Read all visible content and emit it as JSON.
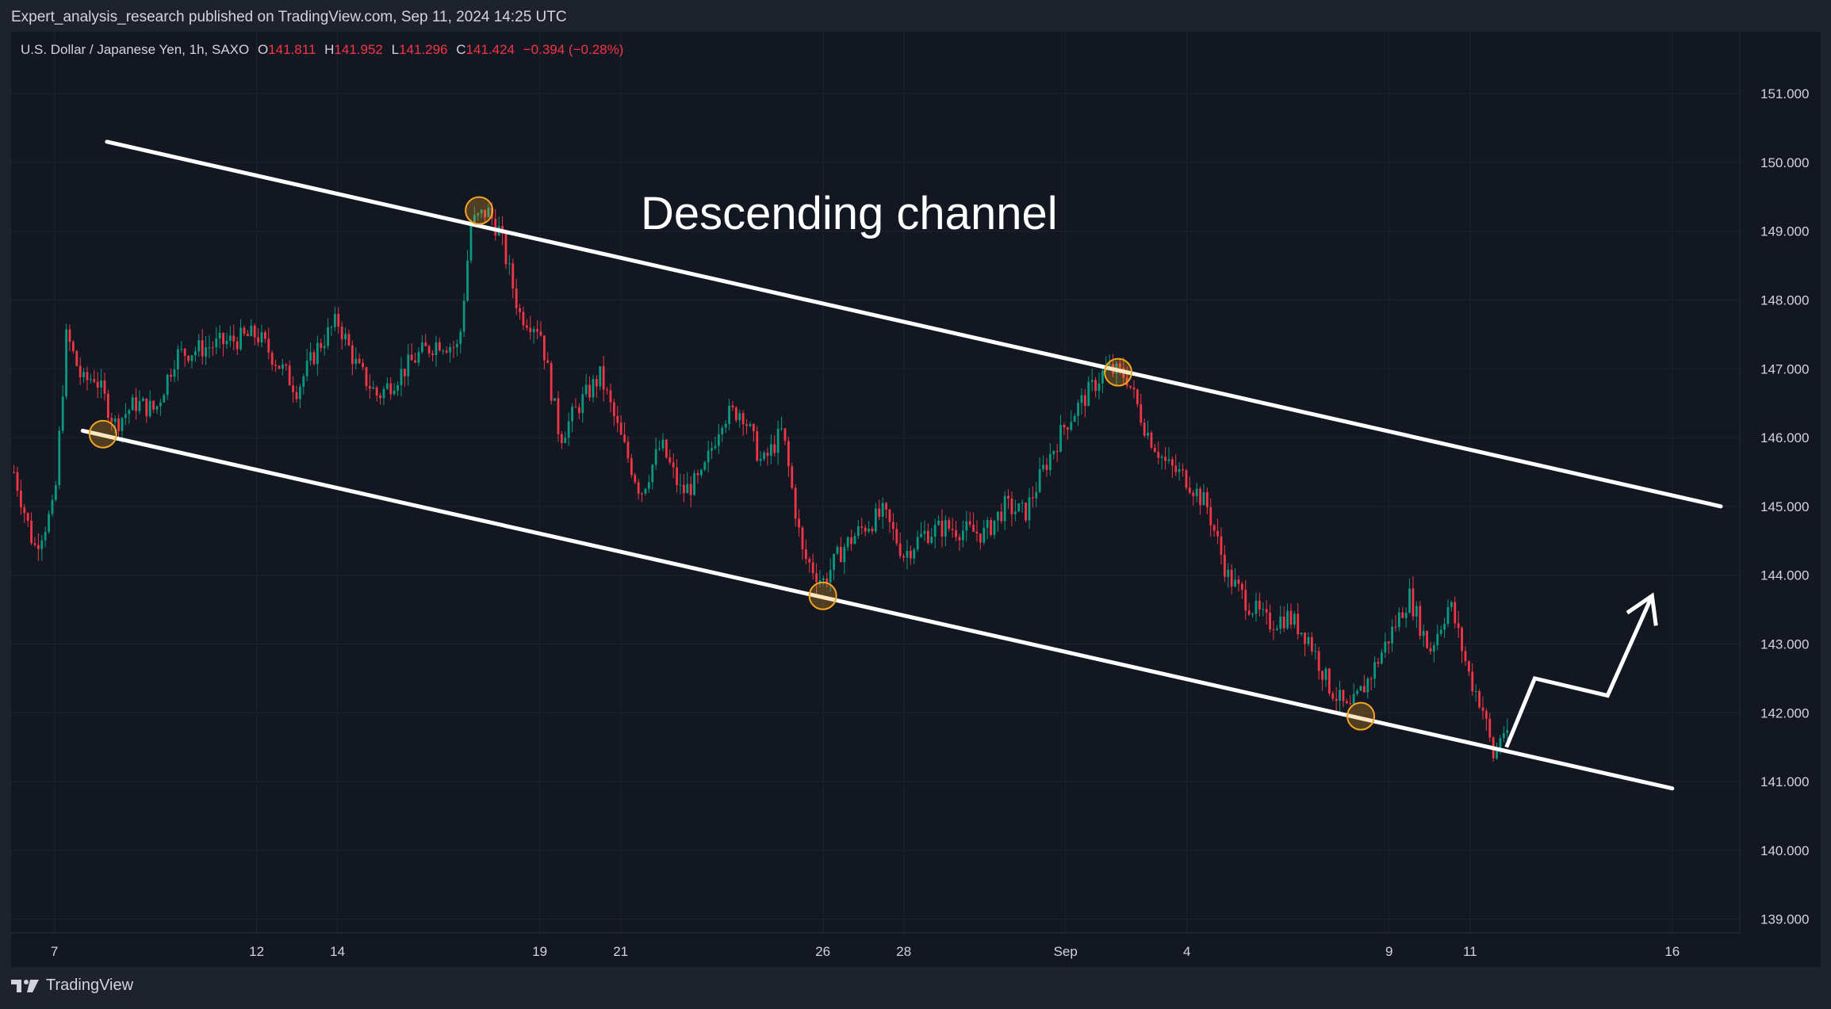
{
  "header": {
    "published_line": "Expert_analysis_research published on TradingView.com, Sep 11, 2024 14:25 UTC"
  },
  "legend": {
    "symbol": "U.S. Dollar / Japanese Yen, 1h, SAXO",
    "open_key": "O",
    "open": "141.811",
    "high_key": "H",
    "high": "141.952",
    "low_key": "L",
    "low": "141.296",
    "close_key": "C",
    "close": "141.424",
    "change": "−0.394 (−0.28%)"
  },
  "annotation": {
    "text": "Descending channel"
  },
  "footer": {
    "brand": "TradingView"
  },
  "colors": {
    "background": "#131722",
    "up_candle": "#089981",
    "down_candle": "#f23645",
    "channel_line": "#ffffff",
    "touch_marker": "#f5a623"
  },
  "chart_data": {
    "type": "candlestick",
    "symbol": "USDJPY",
    "timeframe": "1h",
    "y_axis": {
      "ticks": [
        "151.000",
        "150.000",
        "149.000",
        "148.000",
        "147.000",
        "146.000",
        "145.000",
        "144.000",
        "143.000",
        "142.000",
        "141.000",
        "140.000",
        "139.000"
      ],
      "ylim": [
        138.8,
        151.9
      ]
    },
    "x_axis": {
      "ticks": [
        "7",
        "12",
        "14",
        "19",
        "21",
        "26",
        "28",
        "Sep",
        "4",
        "9",
        "11",
        "16"
      ]
    },
    "price_path": [
      [
        "Aug 6",
        145.5
      ],
      [
        "Aug 6.5",
        144.4
      ],
      [
        "Aug 7",
        145.0
      ],
      [
        "Aug 7.3",
        147.5
      ],
      [
        "Aug 7.7",
        146.8
      ],
      [
        "Aug 8",
        146.9
      ],
      [
        "Aug 8.5",
        146.2
      ],
      [
        "Aug 9",
        146.5
      ],
      [
        "Aug 9.5",
        146.4
      ],
      [
        "Aug 10",
        147.2
      ],
      [
        "Aug 12",
        147.5
      ],
      [
        "Aug 13",
        146.7
      ],
      [
        "Aug 13.5",
        147.3
      ],
      [
        "Aug 14",
        147.7
      ],
      [
        "Aug 14.5",
        147.0
      ],
      [
        "Aug 15",
        146.6
      ],
      [
        "Aug 16",
        147.2
      ],
      [
        "Aug 16.5",
        147.4
      ],
      [
        "Aug 17",
        147.3
      ],
      [
        "Aug 17.3",
        149.1
      ],
      [
        "Aug 17.7",
        149.3
      ],
      [
        "Aug 18",
        149.0
      ],
      [
        "Aug 18.5",
        147.8
      ],
      [
        "Aug 19",
        147.6
      ],
      [
        "Aug 19.5",
        146.0
      ],
      [
        "Aug 20",
        146.5
      ],
      [
        "Aug 20.5",
        146.9
      ],
      [
        "Aug 21",
        146.0
      ],
      [
        "Aug 21.5",
        145.2
      ],
      [
        "Aug 22",
        145.9
      ],
      [
        "Aug 22.5",
        145.2
      ],
      [
        "Aug 23",
        145.4
      ],
      [
        "Aug 23.5",
        146.3
      ],
      [
        "Aug 24",
        146.4
      ],
      [
        "Aug 24.5",
        145.6
      ],
      [
        "Aug 25",
        146.1
      ],
      [
        "Aug 25.5",
        144.3
      ],
      [
        "Aug 26",
        143.9
      ],
      [
        "Aug 26.5",
        144.4
      ],
      [
        "Aug 27",
        144.7
      ],
      [
        "Aug 27.5",
        144.9
      ],
      [
        "Aug 28",
        144.3
      ],
      [
        "Aug 28.5",
        144.6
      ],
      [
        "Aug 29",
        144.7
      ],
      [
        "Aug 30",
        144.6
      ],
      [
        "Aug 30.5",
        145.0
      ],
      [
        "Aug 31",
        144.9
      ],
      [
        "Aug 31.5",
        145.6
      ],
      [
        "Sep 1",
        146.2
      ],
      [
        "Sep 1.5",
        146.6
      ],
      [
        "Sep 2",
        147.0
      ],
      [
        "Sep 2.5",
        146.9
      ],
      [
        "Sep 3",
        146.1
      ],
      [
        "Sep 3.5",
        145.6
      ],
      [
        "Sep 4",
        145.4
      ],
      [
        "Sep 4.5",
        145.0
      ],
      [
        "Sep 5",
        144.0
      ],
      [
        "Sep 5.5",
        143.6
      ],
      [
        "Sep 6",
        143.3
      ],
      [
        "Sep 6.5",
        143.4
      ],
      [
        "Sep 7",
        143.1
      ],
      [
        "Sep 7.5",
        142.4
      ],
      [
        "Sep 8",
        142.0
      ],
      [
        "Sep 8.5",
        142.5
      ],
      [
        "Sep 9",
        143.1
      ],
      [
        "Sep 9.5",
        143.7
      ],
      [
        "Sep 10",
        142.9
      ],
      [
        "Sep 10.5",
        143.6
      ],
      [
        "Sep 11",
        142.5
      ],
      [
        "Sep 11.3",
        142.1
      ],
      [
        "Sep 11.6",
        141.3
      ],
      [
        "Sep 11.8",
        141.8
      ],
      [
        "Sep 12",
        141.45
      ]
    ],
    "channel": {
      "upper": [
        [
          "Aug 8.3",
          150.3
        ],
        [
          "Sep 17.2",
          145.0
        ]
      ],
      "lower": [
        [
          "Aug 7.7",
          146.1
        ],
        [
          "Sep 16",
          140.9
        ]
      ]
    },
    "touch_points": [
      [
        "Aug 8.2",
        146.05
      ],
      [
        "Aug 17.5",
        149.3
      ],
      [
        "Aug 26",
        143.7
      ],
      [
        "Sep 2.3",
        146.95
      ],
      [
        "Sep 8.3",
        141.95
      ]
    ],
    "projection_path": [
      [
        "Sep 11.9",
        141.5
      ],
      [
        "Sep 12.6",
        142.5
      ],
      [
        "Sep 14.4",
        142.25
      ],
      [
        "Sep 15.5",
        143.7
      ]
    ]
  }
}
